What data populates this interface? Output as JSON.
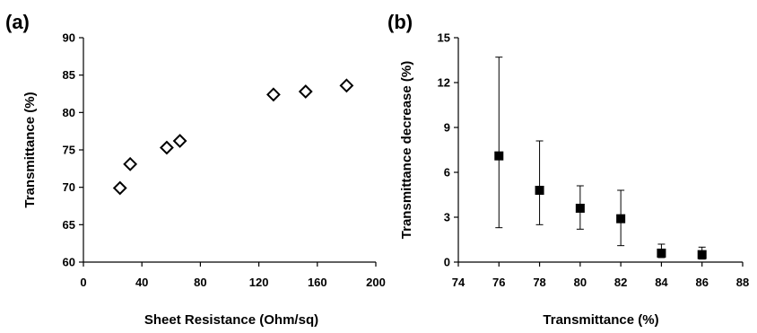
{
  "chart_data": [
    {
      "type": "scatter",
      "panel_label": "(a)",
      "xlabel": "Sheet Resistance (Ohm/sq)",
      "ylabel": "Transmittance (%)",
      "xlim": [
        0,
        200
      ],
      "ylim": [
        60,
        90
      ],
      "xticks": [
        "0",
        "40",
        "80",
        "120",
        "160",
        "200"
      ],
      "yticks": [
        "60",
        "65",
        "70",
        "75",
        "80",
        "85",
        "90"
      ],
      "marker": "open-diamond",
      "grid": false,
      "series": [
        {
          "x": [
            25,
            32,
            57,
            66,
            130,
            152,
            180
          ],
          "y": [
            69.9,
            73.1,
            75.3,
            76.2,
            82.4,
            82.8,
            83.6
          ]
        }
      ]
    },
    {
      "type": "scatter",
      "panel_label": "(b)",
      "xlabel": "Transmittance (%)",
      "ylabel": "Transmittance decrease (%)",
      "xlim": [
        74,
        88
      ],
      "ylim": [
        0,
        15
      ],
      "xticks": [
        "74",
        "76",
        "78",
        "80",
        "82",
        "84",
        "86",
        "88"
      ],
      "yticks": [
        "0",
        "3",
        "6",
        "9",
        "12",
        "15"
      ],
      "marker": "filled-square",
      "grid": false,
      "series": [
        {
          "x": [
            76,
            78,
            80,
            82,
            84,
            86
          ],
          "y": [
            7.1,
            4.8,
            3.6,
            2.9,
            0.6,
            0.5
          ],
          "err_low": [
            2.3,
            2.5,
            2.2,
            1.1,
            0.3,
            0.2
          ],
          "err_high": [
            13.7,
            8.1,
            5.1,
            4.8,
            1.2,
            1.0
          ]
        }
      ]
    }
  ]
}
